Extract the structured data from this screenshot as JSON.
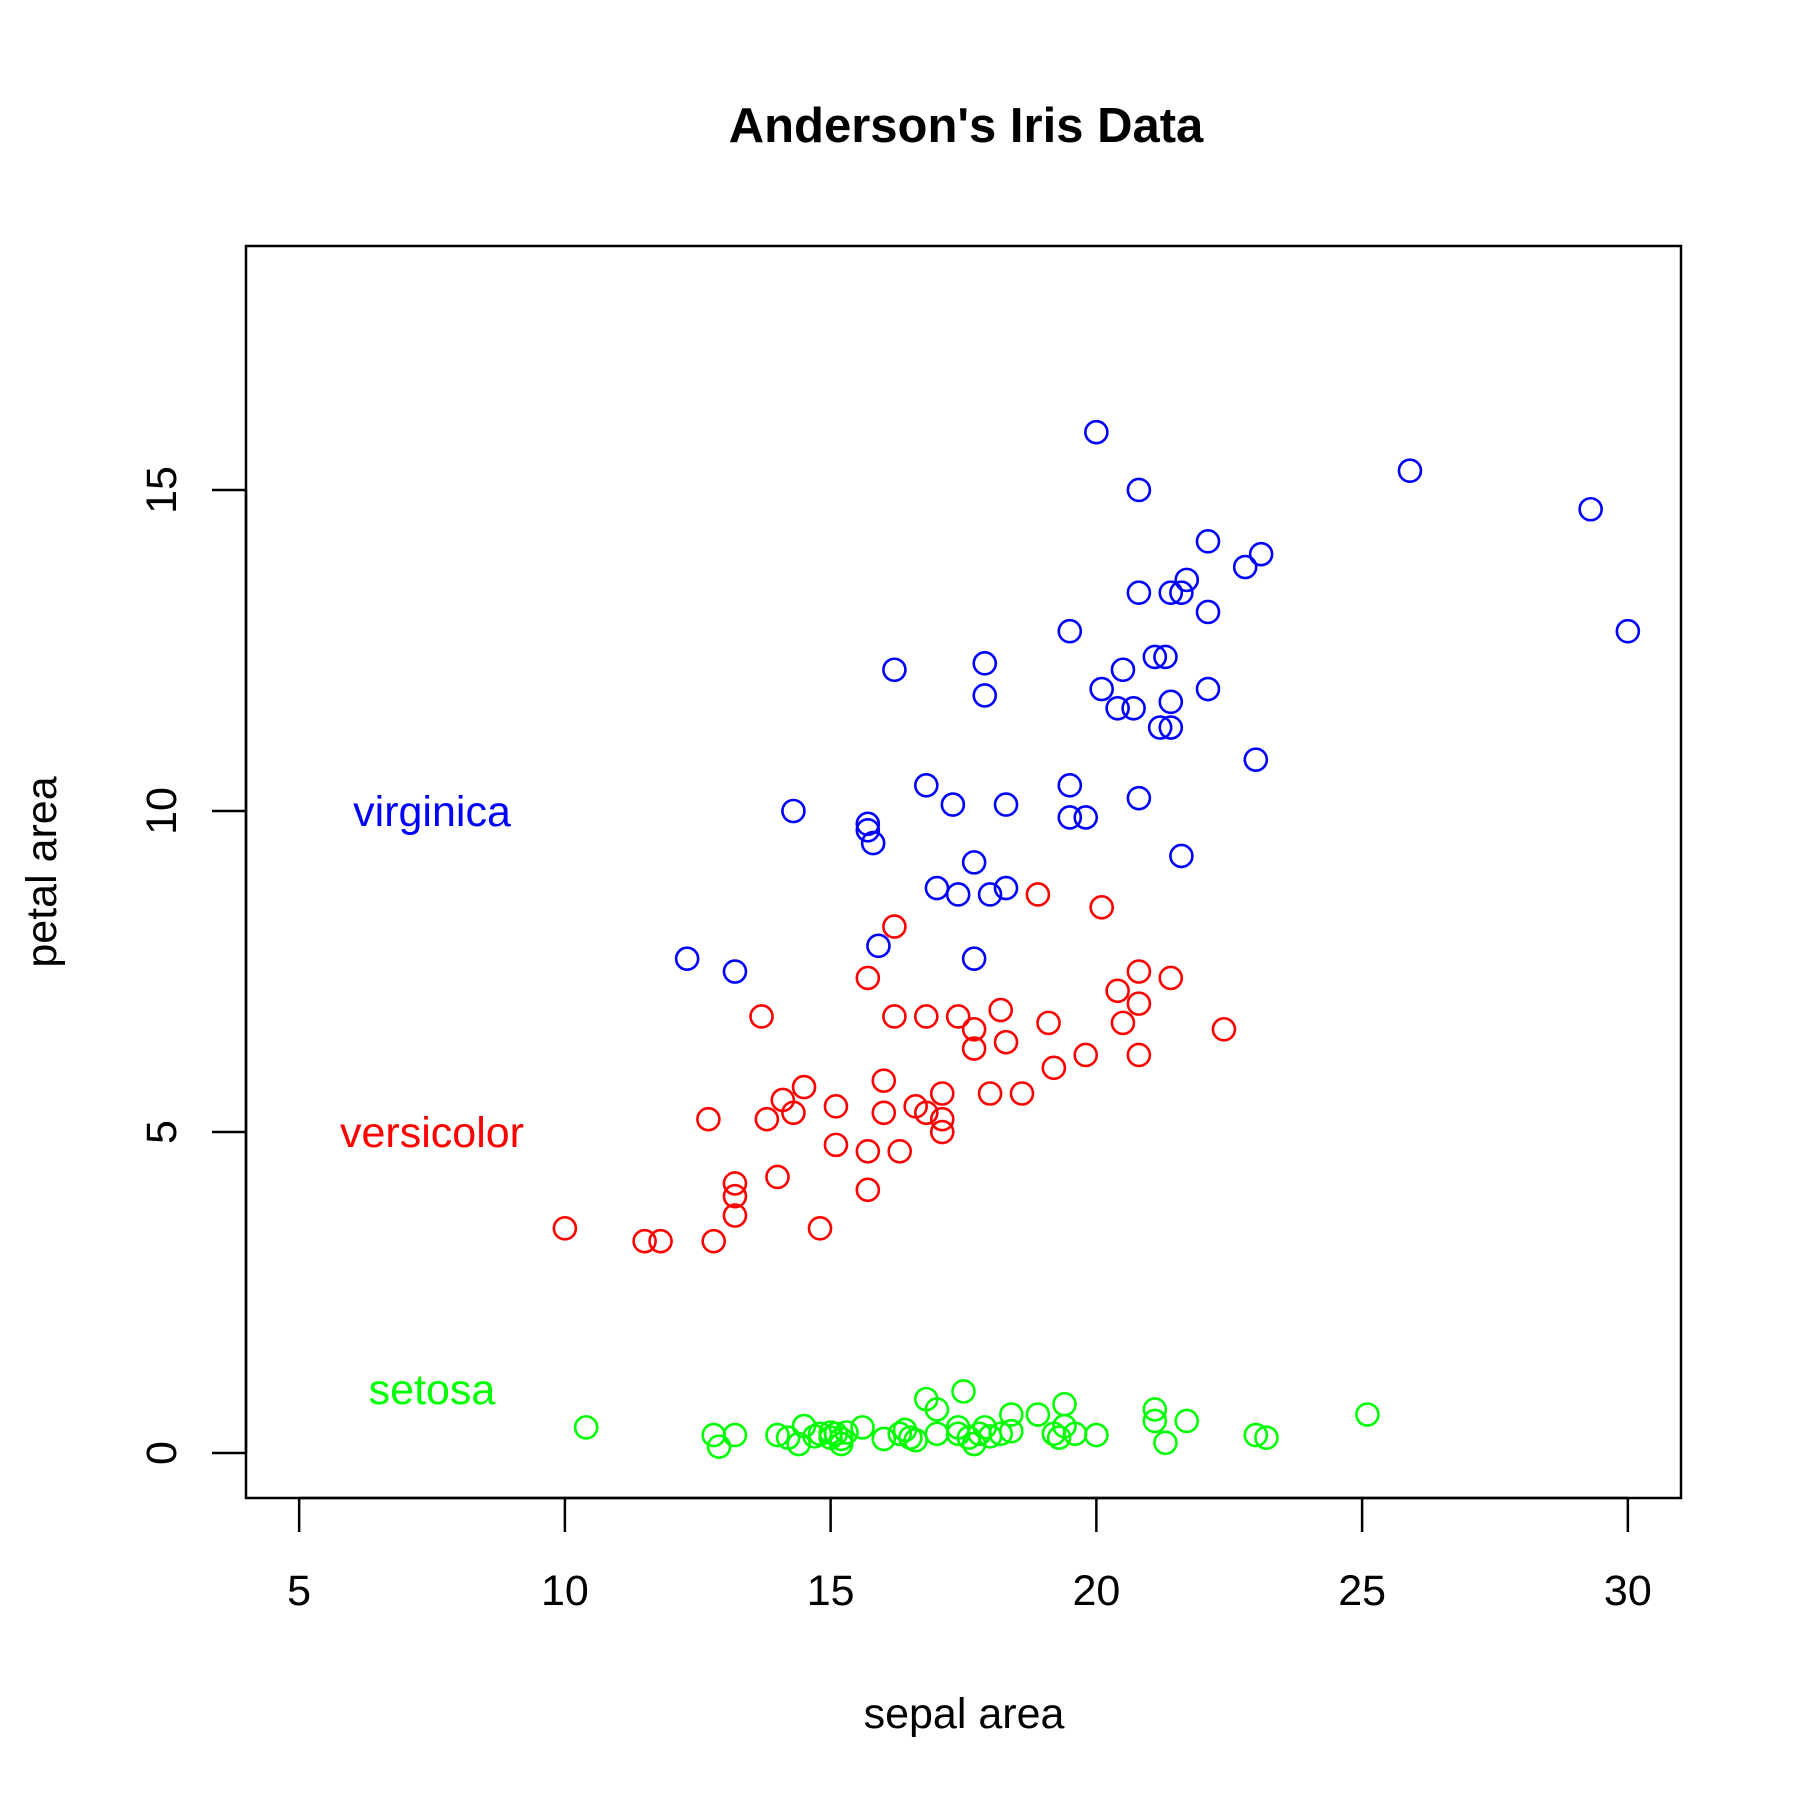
{
  "chart_data": {
    "type": "scatter",
    "title": "Anderson's Iris Data",
    "xlabel": "sepal area",
    "ylabel": "petal area",
    "xlim": [
      4,
      31
    ],
    "ylim": [
      -0.7,
      18.8
    ],
    "x_ticks": [
      5,
      10,
      15,
      20,
      25,
      30
    ],
    "y_ticks": [
      0,
      5,
      10,
      15
    ],
    "grid": false,
    "marker": "open-circle",
    "annotations": [
      {
        "text": "virginica",
        "x": 7.5,
        "y": 10,
        "color": "#0000ff"
      },
      {
        "text": "versicolor",
        "x": 7.5,
        "y": 5,
        "color": "#ff0000"
      },
      {
        "text": "setosa",
        "x": 7.5,
        "y": 1,
        "color": "#00ff00"
      }
    ],
    "series": [
      {
        "color": "#0000ff",
        "points": [
          [
            20.0,
            15.9
          ],
          [
            20.8,
            15.0
          ],
          [
            25.9,
            15.3
          ],
          [
            29.3,
            14.7
          ],
          [
            30.0,
            12.8
          ],
          [
            22.1,
            14.2
          ],
          [
            23.1,
            14.0
          ],
          [
            22.8,
            13.8
          ],
          [
            21.7,
            13.6
          ],
          [
            21.4,
            13.4
          ],
          [
            21.6,
            13.4
          ],
          [
            20.8,
            13.4
          ],
          [
            22.1,
            13.1
          ],
          [
            19.5,
            12.8
          ],
          [
            16.2,
            12.2
          ],
          [
            17.9,
            12.3
          ],
          [
            21.1,
            12.4
          ],
          [
            21.3,
            12.4
          ],
          [
            20.5,
            12.2
          ],
          [
            20.1,
            11.9
          ],
          [
            22.1,
            11.9
          ],
          [
            17.9,
            11.8
          ],
          [
            21.4,
            11.7
          ],
          [
            20.4,
            11.6
          ],
          [
            20.7,
            11.6
          ],
          [
            21.2,
            11.3
          ],
          [
            21.4,
            11.3
          ],
          [
            23.0,
            10.8
          ],
          [
            16.8,
            10.4
          ],
          [
            19.5,
            10.4
          ],
          [
            17.3,
            10.1
          ],
          [
            18.3,
            10.1
          ],
          [
            20.8,
            10.2
          ],
          [
            14.3,
            10.0
          ],
          [
            19.5,
            9.9
          ],
          [
            19.8,
            9.9
          ],
          [
            15.7,
            9.8
          ],
          [
            15.7,
            9.7
          ],
          [
            15.8,
            9.5
          ],
          [
            17.7,
            9.2
          ],
          [
            21.6,
            9.3
          ],
          [
            17.0,
            8.8
          ],
          [
            18.3,
            8.8
          ],
          [
            17.4,
            8.7
          ],
          [
            18.0,
            8.7
          ],
          [
            15.9,
            7.9
          ],
          [
            12.3,
            7.7
          ],
          [
            17.7,
            7.7
          ],
          [
            13.2,
            7.5
          ]
        ]
      },
      {
        "color": "#ff0000",
        "points": [
          [
            18.9,
            8.7
          ],
          [
            20.1,
            8.5
          ],
          [
            16.2,
            8.2
          ],
          [
            20.8,
            7.5
          ],
          [
            15.7,
            7.4
          ],
          [
            21.4,
            7.4
          ],
          [
            20.4,
            7.2
          ],
          [
            20.8,
            7.0
          ],
          [
            18.2,
            6.9
          ],
          [
            13.7,
            6.8
          ],
          [
            16.2,
            6.8
          ],
          [
            16.8,
            6.8
          ],
          [
            17.4,
            6.8
          ],
          [
            19.1,
            6.7
          ],
          [
            20.5,
            6.7
          ],
          [
            17.7,
            6.6
          ],
          [
            22.4,
            6.6
          ],
          [
            18.3,
            6.4
          ],
          [
            17.7,
            6.3
          ],
          [
            19.8,
            6.2
          ],
          [
            20.8,
            6.2
          ],
          [
            19.2,
            6.0
          ],
          [
            16.0,
            5.8
          ],
          [
            14.5,
            5.7
          ],
          [
            17.1,
            5.6
          ],
          [
            18.0,
            5.6
          ],
          [
            18.6,
            5.6
          ],
          [
            14.1,
            5.5
          ],
          [
            15.1,
            5.4
          ],
          [
            16.6,
            5.4
          ],
          [
            16.0,
            5.3
          ],
          [
            16.8,
            5.3
          ],
          [
            14.3,
            5.3
          ],
          [
            13.8,
            5.2
          ],
          [
            12.7,
            5.2
          ],
          [
            17.1,
            5.2
          ],
          [
            17.1,
            5.0
          ],
          [
            15.1,
            4.8
          ],
          [
            15.7,
            4.7
          ],
          [
            16.3,
            4.7
          ],
          [
            14.0,
            4.3
          ],
          [
            13.2,
            4.2
          ],
          [
            13.2,
            4.0
          ],
          [
            15.7,
            4.1
          ],
          [
            13.2,
            3.7
          ],
          [
            10.0,
            3.5
          ],
          [
            14.8,
            3.5
          ],
          [
            11.5,
            3.3
          ],
          [
            11.8,
            3.3
          ],
          [
            12.8,
            3.3
          ]
        ]
      },
      {
        "color": "#00ff00",
        "points": [
          [
            17.5,
            0.96
          ],
          [
            16.8,
            0.84
          ],
          [
            19.4,
            0.76
          ],
          [
            17.0,
            0.68
          ],
          [
            21.1,
            0.68
          ],
          [
            18.9,
            0.6
          ],
          [
            18.4,
            0.6
          ],
          [
            25.1,
            0.6
          ],
          [
            21.1,
            0.5
          ],
          [
            21.7,
            0.5
          ],
          [
            10.4,
            0.4
          ],
          [
            15.6,
            0.4
          ],
          [
            14.5,
            0.42
          ],
          [
            17.4,
            0.4
          ],
          [
            17.9,
            0.4
          ],
          [
            19.4,
            0.42
          ],
          [
            16.4,
            0.36
          ],
          [
            18.4,
            0.34
          ],
          [
            15.0,
            0.32
          ],
          [
            15.3,
            0.32
          ],
          [
            14.8,
            0.3
          ],
          [
            16.3,
            0.3
          ],
          [
            17.0,
            0.3
          ],
          [
            17.4,
            0.3
          ],
          [
            17.8,
            0.3
          ],
          [
            18.2,
            0.3
          ],
          [
            19.6,
            0.3
          ],
          [
            20.0,
            0.28
          ],
          [
            23.0,
            0.28
          ],
          [
            12.8,
            0.28
          ],
          [
            13.2,
            0.28
          ],
          [
            14.0,
            0.28
          ],
          [
            14.7,
            0.26
          ],
          [
            14.2,
            0.24
          ],
          [
            15.0,
            0.24
          ],
          [
            16.5,
            0.24
          ],
          [
            17.6,
            0.24
          ],
          [
            18.0,
            0.26
          ],
          [
            19.3,
            0.24
          ],
          [
            23.2,
            0.24
          ],
          [
            15.2,
            0.22
          ],
          [
            16.0,
            0.22
          ],
          [
            16.6,
            0.2
          ],
          [
            21.3,
            0.16
          ],
          [
            12.9,
            0.1
          ],
          [
            14.4,
            0.14
          ],
          [
            15.2,
            0.14
          ],
          [
            17.7,
            0.14
          ],
          [
            19.2,
            0.3
          ],
          [
            15.1,
            0.3
          ]
        ]
      }
    ]
  }
}
